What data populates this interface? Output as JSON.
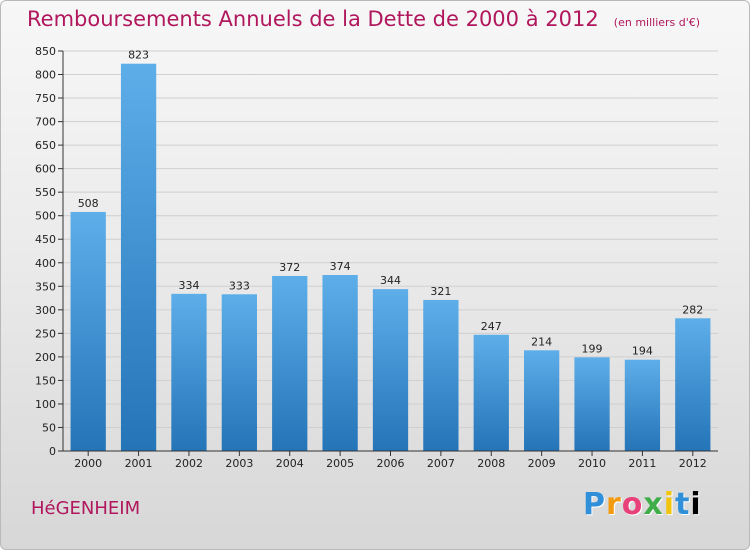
{
  "header": {
    "title": "Remboursements Annuels de la Dette de 2000 à 2012",
    "unit": "(en milliers d'€)"
  },
  "footer": {
    "commune": "HéGENHEIM",
    "brand_letters": [
      "P",
      "r",
      "o",
      "x",
      "i",
      "t",
      "i"
    ]
  },
  "colors": {
    "title": "#b0175c",
    "bar_light": "#5daee9",
    "bar_dark": "#2474b8",
    "grid": "#cfcfcf"
  },
  "chart_data": {
    "type": "bar",
    "title": "Remboursements Annuels de la Dette de 2000 à 2012",
    "xlabel": "",
    "ylabel": "",
    "categories": [
      "2000",
      "2001",
      "2002",
      "2003",
      "2004",
      "2005",
      "2006",
      "2007",
      "2008",
      "2009",
      "2010",
      "2011",
      "2012"
    ],
    "values": [
      508,
      823,
      334,
      333,
      372,
      374,
      344,
      321,
      247,
      214,
      199,
      194,
      282
    ],
    "ylim": [
      0,
      850
    ],
    "yticks": [
      0,
      50,
      100,
      150,
      200,
      250,
      300,
      350,
      400,
      450,
      500,
      550,
      600,
      650,
      700,
      750,
      800,
      850
    ],
    "grid": true,
    "legend": "none"
  }
}
